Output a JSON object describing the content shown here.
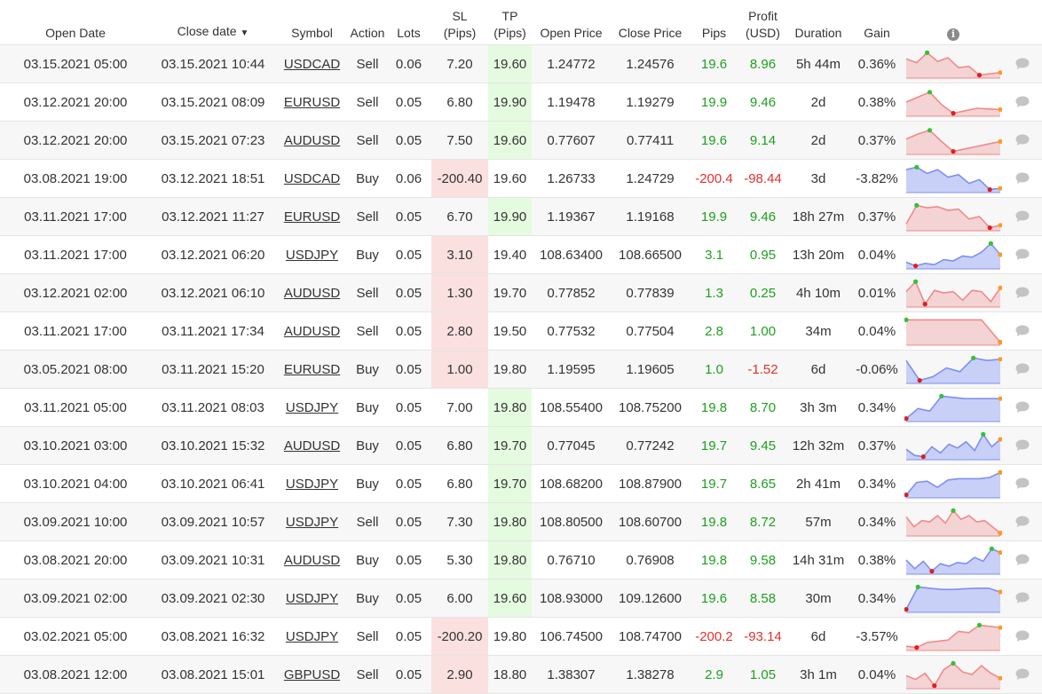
{
  "columns": {
    "open_date": "Open Date",
    "close_date": "Close date",
    "sort_arrow": "▼",
    "symbol": "Symbol",
    "action": "Action",
    "lots": "Lots",
    "sl_top": "SL",
    "sl_bottom": "(Pips)",
    "tp_top": "TP",
    "tp_bottom": "(Pips)",
    "open_price": "Open Price",
    "close_price": "Close Price",
    "pips": "Pips",
    "profit_top": "Profit",
    "profit_bottom": "(USD)",
    "duration": "Duration",
    "gain": "Gain",
    "info_icon": "i"
  },
  "colors": {
    "positive": "#1ea01e",
    "negative": "#e0302e",
    "sl_highlight": "#fbe0e0",
    "tp_highlight": "#e5fbe0",
    "sell_line": "#f08a8a",
    "sell_fill": "#f3d3d3",
    "buy_line": "#7f8ff2",
    "buy_fill": "#c8d0f7",
    "marker_high": "#33c233",
    "marker_low": "#e01e1e",
    "marker_end": "#ff9b21",
    "comment_icon": "#c4c4c4"
  },
  "trades": [
    {
      "open_date": "03.15.2021 05:00",
      "close_date": "03.15.2021 10:44",
      "symbol": "USDCAD",
      "action": "Sell",
      "lots": "0.06",
      "sl": "7.20",
      "tp": "19.60",
      "open_price": "1.24772",
      "close_price": "1.24576",
      "pips": "19.6",
      "profit": "8.96",
      "duration": "5h 44m",
      "gain": "0.36%",
      "positive": true,
      "sl_hit": false,
      "tp_hit": true,
      "spark": [
        0.7,
        0.55,
        0.95,
        0.6,
        0.75,
        0.35,
        0.4,
        0.05,
        0.1,
        0.15
      ]
    },
    {
      "open_date": "03.12.2021 20:00",
      "close_date": "03.15.2021 08:09",
      "symbol": "EURUSD",
      "action": "Sell",
      "lots": "0.05",
      "sl": "6.80",
      "tp": "19.90",
      "open_price": "1.19478",
      "close_price": "1.19279",
      "pips": "19.9",
      "profit": "9.46",
      "duration": "2d",
      "gain": "0.38%",
      "positive": true,
      "sl_hit": false,
      "tp_hit": true,
      "spark": [
        0.5,
        0.7,
        0.9,
        0.4,
        0.05,
        0.15,
        0.25,
        0.22,
        0.2
      ]
    },
    {
      "open_date": "03.12.2021 20:00",
      "close_date": "03.15.2021 07:23",
      "symbol": "AUDUSD",
      "action": "Sell",
      "lots": "0.05",
      "sl": "7.50",
      "tp": "19.60",
      "open_price": "0.77607",
      "close_price": "0.77411",
      "pips": "19.6",
      "profit": "9.14",
      "duration": "2d",
      "gain": "0.37%",
      "positive": true,
      "sl_hit": false,
      "tp_hit": true,
      "spark": [
        0.55,
        0.75,
        0.9,
        0.45,
        0.05,
        0.15,
        0.25,
        0.35,
        0.45
      ]
    },
    {
      "open_date": "03.08.2021 19:00",
      "close_date": "03.12.2021 18:51",
      "symbol": "USDCAD",
      "action": "Buy",
      "lots": "0.06",
      "sl": "-200.40",
      "tp": "19.60",
      "open_price": "1.26733",
      "close_price": "1.24729",
      "pips": "-200.4",
      "profit": "-98.44",
      "duration": "3d",
      "gain": "-3.82%",
      "positive": false,
      "sl_hit": true,
      "tp_hit": false,
      "spark": [
        0.85,
        0.95,
        0.7,
        0.85,
        0.55,
        0.65,
        0.3,
        0.45,
        0.05,
        0.1
      ]
    },
    {
      "open_date": "03.11.2021 17:00",
      "close_date": "03.12.2021 11:27",
      "symbol": "EURUSD",
      "action": "Sell",
      "lots": "0.05",
      "sl": "6.70",
      "tp": "19.90",
      "open_price": "1.19367",
      "close_price": "1.19168",
      "pips": "19.9",
      "profit": "9.46",
      "duration": "18h 27m",
      "gain": "0.37%",
      "positive": true,
      "sl_hit": false,
      "tp_hit": true,
      "spark": [
        0.2,
        0.95,
        0.85,
        0.9,
        0.75,
        0.8,
        0.4,
        0.5,
        0.05,
        0.15
      ]
    },
    {
      "open_date": "03.11.2021 17:00",
      "close_date": "03.12.2021 06:20",
      "symbol": "USDJPY",
      "action": "Buy",
      "lots": "0.05",
      "sl": "3.10",
      "tp": "19.40",
      "open_price": "108.63400",
      "close_price": "108.66500",
      "pips": "3.1",
      "profit": "0.95",
      "duration": "13h 20m",
      "gain": "0.04%",
      "positive": true,
      "sl_hit": true,
      "tp_hit": false,
      "spark": [
        0.2,
        0.05,
        0.15,
        0.1,
        0.3,
        0.25,
        0.45,
        0.4,
        0.6,
        0.95,
        0.5
      ]
    },
    {
      "open_date": "03.12.2021 02:00",
      "close_date": "03.12.2021 06:10",
      "symbol": "AUDUSD",
      "action": "Sell",
      "lots": "0.05",
      "sl": "1.30",
      "tp": "19.70",
      "open_price": "0.77852",
      "close_price": "0.77839",
      "pips": "1.3",
      "profit": "0.25",
      "duration": "4h 10m",
      "gain": "0.01%",
      "positive": true,
      "sl_hit": true,
      "tp_hit": false,
      "spark": [
        0.55,
        0.95,
        0.05,
        0.6,
        0.5,
        0.55,
        0.2,
        0.6,
        0.55,
        0.15,
        0.7
      ]
    },
    {
      "open_date": "03.11.2021 17:00",
      "close_date": "03.11.2021 17:34",
      "symbol": "AUDUSD",
      "action": "Sell",
      "lots": "0.05",
      "sl": "2.80",
      "tp": "19.50",
      "open_price": "0.77532",
      "close_price": "0.77504",
      "pips": "2.8",
      "profit": "1.00",
      "duration": "34m",
      "gain": "0.04%",
      "positive": true,
      "sl_hit": true,
      "tp_hit": false,
      "spark": [
        0.95,
        0.95,
        0.95,
        0.95,
        0.95,
        0.05
      ]
    },
    {
      "open_date": "03.05.2021 08:00",
      "close_date": "03.11.2021 15:20",
      "symbol": "EURUSD",
      "action": "Buy",
      "lots": "0.05",
      "sl": "1.00",
      "tp": "19.80",
      "open_price": "1.19595",
      "close_price": "1.19605",
      "pips": "1.0",
      "profit": "-1.52",
      "duration": "6d",
      "gain": "-0.06%",
      "positive": false,
      "sl_hit": true,
      "tp_hit": false,
      "spark": [
        0.85,
        0.05,
        0.2,
        0.55,
        0.4,
        0.95,
        0.85,
        0.9
      ]
    },
    {
      "open_date": "03.11.2021 05:00",
      "close_date": "03.11.2021 08:03",
      "symbol": "USDJPY",
      "action": "Buy",
      "lots": "0.05",
      "sl": "7.00",
      "tp": "19.80",
      "open_price": "108.55400",
      "close_price": "108.75200",
      "pips": "19.8",
      "profit": "8.70",
      "duration": "3h 3m",
      "gain": "0.34%",
      "positive": true,
      "sl_hit": false,
      "tp_hit": true,
      "spark": [
        0.05,
        0.45,
        0.35,
        0.95,
        0.9,
        0.85,
        0.85,
        0.85,
        0.85
      ]
    },
    {
      "open_date": "03.10.2021 03:00",
      "close_date": "03.10.2021 15:32",
      "symbol": "AUDUSD",
      "action": "Buy",
      "lots": "0.05",
      "sl": "6.80",
      "tp": "19.70",
      "open_price": "0.77045",
      "close_price": "0.77242",
      "pips": "19.7",
      "profit": "9.45",
      "duration": "12h 32m",
      "gain": "0.37%",
      "positive": true,
      "sl_hit": false,
      "tp_hit": true,
      "spark": [
        0.35,
        0.1,
        0.05,
        0.45,
        0.2,
        0.55,
        0.4,
        0.65,
        0.3,
        0.95,
        0.45,
        0.75
      ]
    },
    {
      "open_date": "03.10.2021 04:00",
      "close_date": "03.10.2021 06:41",
      "symbol": "USDJPY",
      "action": "Buy",
      "lots": "0.05",
      "sl": "6.80",
      "tp": "19.70",
      "open_price": "108.68200",
      "close_price": "108.87900",
      "pips": "19.7",
      "profit": "8.65",
      "duration": "2h 41m",
      "gain": "0.34%",
      "positive": true,
      "sl_hit": false,
      "tp_hit": true,
      "spark": [
        0.05,
        0.55,
        0.6,
        0.35,
        0.65,
        0.7,
        0.7,
        0.7,
        0.75,
        0.95
      ]
    },
    {
      "open_date": "03.09.2021 10:00",
      "close_date": "03.09.2021 10:57",
      "symbol": "USDJPY",
      "action": "Sell",
      "lots": "0.05",
      "sl": "7.30",
      "tp": "19.80",
      "open_price": "108.80500",
      "close_price": "108.60700",
      "pips": "19.8",
      "profit": "8.72",
      "duration": "57m",
      "gain": "0.34%",
      "positive": true,
      "sl_hit": false,
      "tp_hit": true,
      "spark": [
        0.7,
        0.3,
        0.55,
        0.5,
        0.75,
        0.45,
        0.95,
        0.6,
        0.75,
        0.5,
        0.55,
        0.3,
        0.05
      ]
    },
    {
      "open_date": "03.08.2021 20:00",
      "close_date": "03.09.2021 10:31",
      "symbol": "AUDUSD",
      "action": "Buy",
      "lots": "0.05",
      "sl": "5.30",
      "tp": "19.80",
      "open_price": "0.76710",
      "close_price": "0.76908",
      "pips": "19.8",
      "profit": "9.58",
      "duration": "14h 31m",
      "gain": "0.38%",
      "positive": true,
      "sl_hit": false,
      "tp_hit": true,
      "spark": [
        0.5,
        0.15,
        0.45,
        0.05,
        0.35,
        0.25,
        0.4,
        0.35,
        0.6,
        0.45,
        0.95,
        0.8
      ]
    },
    {
      "open_date": "03.09.2021 02:00",
      "close_date": "03.09.2021 02:30",
      "symbol": "USDJPY",
      "action": "Buy",
      "lots": "0.05",
      "sl": "6.00",
      "tp": "19.60",
      "open_price": "108.93000",
      "close_price": "109.12600",
      "pips": "19.6",
      "profit": "8.58",
      "duration": "30m",
      "gain": "0.34%",
      "positive": true,
      "sl_hit": false,
      "tp_hit": true,
      "spark": [
        0.05,
        0.95,
        0.9,
        0.85,
        0.85,
        0.88,
        0.9,
        0.9,
        0.75
      ]
    },
    {
      "open_date": "03.02.2021 05:00",
      "close_date": "03.08.2021 16:32",
      "symbol": "USDJPY",
      "action": "Sell",
      "lots": "0.05",
      "sl": "-200.20",
      "tp": "19.80",
      "open_price": "106.74500",
      "close_price": "108.74700",
      "pips": "-200.2",
      "profit": "-93.14",
      "duration": "6d",
      "gain": "-3.57%",
      "positive": false,
      "sl_hit": true,
      "tp_hit": false,
      "spark": [
        0.1,
        0.05,
        0.25,
        0.3,
        0.35,
        0.7,
        0.65,
        0.95,
        0.9,
        0.85
      ]
    },
    {
      "open_date": "03.08.2021 12:00",
      "close_date": "03.08.2021 15:01",
      "symbol": "GBPUSD",
      "action": "Sell",
      "lots": "0.05",
      "sl": "2.90",
      "tp": "18.80",
      "open_price": "1.38307",
      "close_price": "1.38278",
      "pips": "2.9",
      "profit": "1.05",
      "duration": "3h 1m",
      "gain": "0.04%",
      "positive": true,
      "sl_hit": true,
      "tp_hit": false,
      "spark": [
        0.45,
        0.3,
        0.55,
        0.05,
        0.7,
        0.95,
        0.6,
        0.5,
        0.85,
        0.55,
        0.35
      ]
    }
  ]
}
